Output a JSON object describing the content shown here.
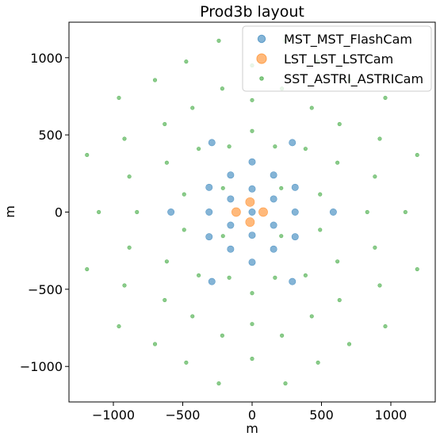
{
  "chart_data": {
    "type": "scatter",
    "title": "Prod3b layout",
    "xlabel": "m",
    "ylabel": "m",
    "xlim": [
      -1320,
      1320
    ],
    "ylim": [
      -1230,
      1230
    ],
    "xticks": [
      -1000,
      -500,
      0,
      500,
      1000
    ],
    "yticks": [
      -1000,
      -500,
      0,
      500,
      1000
    ],
    "xtick_labels": [
      "−1000",
      "−500",
      "0",
      "500",
      "1000"
    ],
    "ytick_labels": [
      "−1000",
      "−500",
      "0",
      "500",
      "1000"
    ],
    "grid": false,
    "legend_position": "top-right",
    "series": [
      {
        "name": "MST_MST_FlashCam",
        "color": "#1f77b4",
        "marker_size": "medium",
        "points": [
          [
            0,
            325
          ],
          [
            0,
            150
          ],
          [
            0,
            0
          ],
          [
            0,
            -150
          ],
          [
            0,
            -325
          ],
          [
            -155,
            240
          ],
          [
            155,
            240
          ],
          [
            -155,
            -240
          ],
          [
            155,
            -240
          ],
          [
            -310,
            160
          ],
          [
            310,
            160
          ],
          [
            -310,
            -160
          ],
          [
            310,
            -160
          ],
          [
            -155,
            85
          ],
          [
            155,
            85
          ],
          [
            -155,
            -85
          ],
          [
            155,
            -85
          ],
          [
            -310,
            0
          ],
          [
            310,
            0
          ],
          [
            -585,
            0
          ],
          [
            585,
            0
          ],
          [
            -290,
            450
          ],
          [
            290,
            450
          ],
          [
            -290,
            -450
          ],
          [
            290,
            -450
          ]
        ]
      },
      {
        "name": "LST_LST_LSTCam",
        "color": "#ff7f0e",
        "marker_size": "large",
        "points": [
          [
            -115,
            0
          ],
          [
            80,
            0
          ],
          [
            -15,
            65
          ],
          [
            -15,
            -65
          ]
        ]
      },
      {
        "name": "SST_ASTRI_ASTRICam",
        "color": "#2ca02c",
        "marker_size": "small",
        "points": [
          [
            0,
            950
          ],
          [
            0,
            725
          ],
          [
            0,
            525
          ],
          [
            0,
            -525
          ],
          [
            0,
            -725
          ],
          [
            0,
            -950
          ],
          [
            -240,
            1110
          ],
          [
            240,
            1110
          ],
          [
            -240,
            -1110
          ],
          [
            240,
            -1110
          ],
          [
            -475,
            975
          ],
          [
            475,
            975
          ],
          [
            -475,
            -975
          ],
          [
            475,
            -975
          ],
          [
            -700,
            855
          ],
          [
            700,
            855
          ],
          [
            -700,
            -855
          ],
          [
            700,
            -855
          ],
          [
            -960,
            740
          ],
          [
            960,
            740
          ],
          [
            -960,
            -740
          ],
          [
            960,
            -740
          ],
          [
            -1190,
            370
          ],
          [
            1190,
            370
          ],
          [
            -1190,
            -370
          ],
          [
            1190,
            -370
          ],
          [
            -1105,
            0
          ],
          [
            1105,
            0
          ],
          [
            -830,
            0
          ],
          [
            830,
            0
          ],
          [
            -920,
            475
          ],
          [
            920,
            475
          ],
          [
            -920,
            -475
          ],
          [
            920,
            -475
          ],
          [
            -885,
            230
          ],
          [
            885,
            230
          ],
          [
            -885,
            -230
          ],
          [
            885,
            -230
          ],
          [
            -630,
            570
          ],
          [
            630,
            570
          ],
          [
            -630,
            -570
          ],
          [
            630,
            -570
          ],
          [
            -430,
            675
          ],
          [
            430,
            675
          ],
          [
            -430,
            -675
          ],
          [
            430,
            -675
          ],
          [
            -215,
            800
          ],
          [
            215,
            800
          ],
          [
            -215,
            -800
          ],
          [
            215,
            -800
          ],
          [
            -615,
            320
          ],
          [
            615,
            320
          ],
          [
            -615,
            -320
          ],
          [
            615,
            -320
          ],
          [
            -385,
            410
          ],
          [
            385,
            410
          ],
          [
            -385,
            -410
          ],
          [
            385,
            -410
          ],
          [
            -165,
            425
          ],
          [
            165,
            425
          ],
          [
            -165,
            -425
          ],
          [
            165,
            -425
          ],
          [
            -490,
            115
          ],
          [
            490,
            115
          ],
          [
            -490,
            -115
          ],
          [
            490,
            -115
          ],
          [
            -210,
            155
          ],
          [
            210,
            155
          ],
          [
            -210,
            -155
          ],
          [
            210,
            -155
          ]
        ]
      }
    ]
  }
}
